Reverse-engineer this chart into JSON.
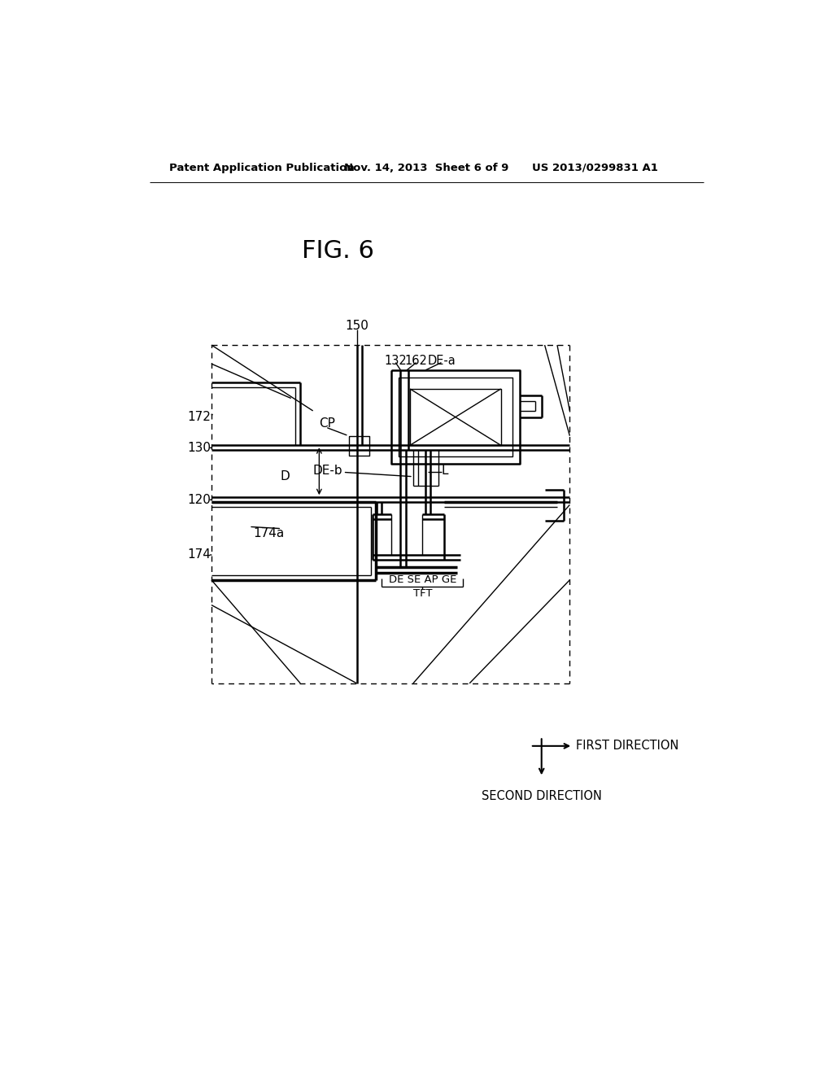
{
  "bg_color": "#ffffff",
  "line_color": "#000000",
  "fig_title": "FIG. 6",
  "header_left": "Patent Application Publication",
  "header_mid": "Nov. 14, 2013  Sheet 6 of 9",
  "header_right": "US 2013/0299831 A1",
  "first_dir_text": "FIRST DIRECTION",
  "second_dir_text": "SECOND DIRECTION"
}
